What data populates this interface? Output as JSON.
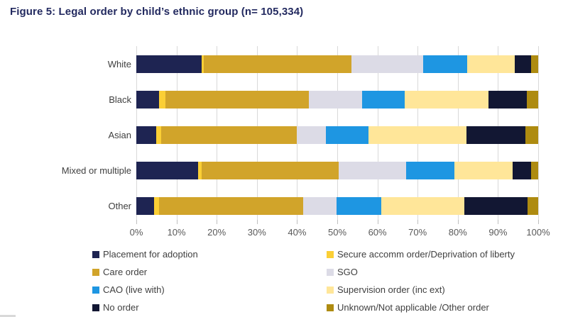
{
  "title": "Figure 5: Legal order by child’s ethnic group (n= 105,334)",
  "colors": {
    "title_text": "#232a60",
    "axis_text": "#595959",
    "category_text": "#404040",
    "gridline": "#d9d9d9"
  },
  "chart_data": {
    "type": "bar",
    "orientation": "horizontal",
    "stacked": true,
    "title": "Figure 5: Legal order by child’s ethnic group (n= 105,334)",
    "xlabel": "",
    "ylabel": "",
    "xlim": [
      0,
      100
    ],
    "grid": true,
    "legend_position": "bottom",
    "categories": [
      "White",
      "Black",
      "Asian",
      "Mixed or multiple",
      "Other"
    ],
    "series": [
      {
        "name": "Placement for adoption",
        "color": "#1e2452",
        "values": [
          16.2,
          5.7,
          4.9,
          15.4,
          4.5
        ]
      },
      {
        "name": "Secure accomm order/Deprivation of liberty",
        "color": "#fbcf35",
        "values": [
          0.6,
          1.5,
          1.3,
          0.8,
          1.2
        ]
      },
      {
        "name": "Care order",
        "color": "#d1a42a",
        "values": [
          36.8,
          35.8,
          33.7,
          34.1,
          35.8
        ]
      },
      {
        "name": "SGO",
        "color": "#dcdbe6",
        "values": [
          17.7,
          13.2,
          7.2,
          16.8,
          8.3
        ]
      },
      {
        "name": "CAO (live with)",
        "color": "#1e96e2",
        "values": [
          11.1,
          10.6,
          10.7,
          12.0,
          11.1
        ]
      },
      {
        "name": "Supervision order (inc ext)",
        "color": "#ffe699",
        "values": [
          11.8,
          20.9,
          24.3,
          14.6,
          20.8
        ]
      },
      {
        "name": "No order",
        "color": "#121733",
        "values": [
          4.1,
          9.5,
          14.8,
          4.6,
          15.6
        ]
      },
      {
        "name": "Unknown/Not applicable /Other order",
        "color": "#ae8b10",
        "values": [
          1.7,
          2.8,
          3.1,
          1.7,
          2.7
        ]
      }
    ],
    "x_axis_ticks": [
      "0%",
      "10%",
      "20%",
      "30%",
      "40%",
      "50%",
      "60%",
      "70%",
      "80%",
      "90%",
      "100%"
    ],
    "legend_columns": [
      [
        "Placement for adoption",
        "Care order",
        "CAO (live with)",
        "No order"
      ],
      [
        "Secure accomm order/Deprivation of liberty",
        "SGO",
        "Supervision order (inc ext)",
        "Unknown/Not applicable /Other order"
      ]
    ]
  }
}
